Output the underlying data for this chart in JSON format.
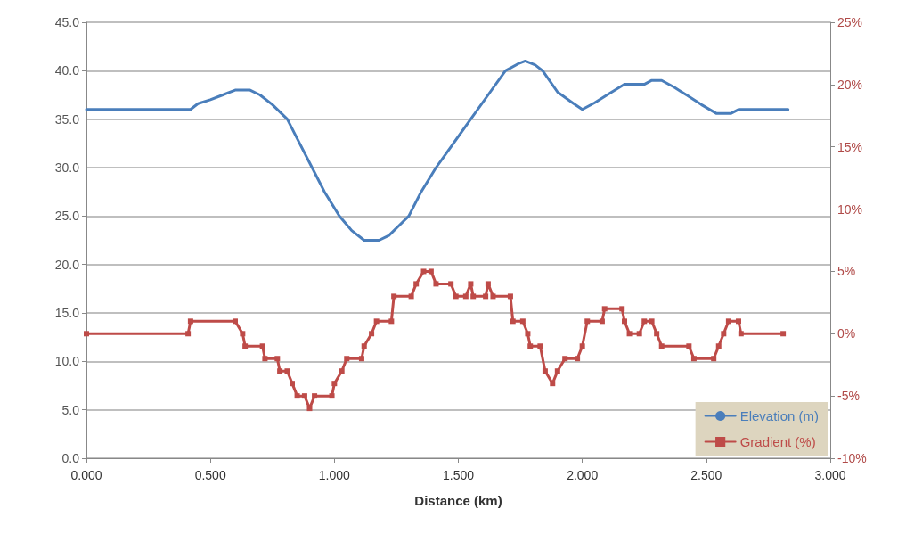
{
  "chart_data": {
    "type": "line",
    "xlabel": "Distance (km)",
    "xlim": [
      0,
      3
    ],
    "xticks": [
      {
        "value": 0,
        "label": "0.000"
      },
      {
        "value": 0.5,
        "label": "0.500"
      },
      {
        "value": 1,
        "label": "1.000"
      },
      {
        "value": 1.5,
        "label": "1.500"
      },
      {
        "value": 2,
        "label": "2.000"
      },
      {
        "value": 2.5,
        "label": "2.500"
      },
      {
        "value": 3,
        "label": "3.000"
      }
    ],
    "ylim": [
      0,
      45
    ],
    "yticks": [
      {
        "value": 0,
        "label": "0.0"
      },
      {
        "value": 5,
        "label": "5.0"
      },
      {
        "value": 10,
        "label": "10.0"
      },
      {
        "value": 15,
        "label": "15.0"
      },
      {
        "value": 20,
        "label": "20.0"
      },
      {
        "value": 25,
        "label": "25.0"
      },
      {
        "value": 30,
        "label": "30.0"
      },
      {
        "value": 35,
        "label": "35.0"
      },
      {
        "value": 40,
        "label": "40.0"
      },
      {
        "value": 45,
        "label": "45.0"
      }
    ],
    "y2lim": [
      -10,
      25
    ],
    "y2ticks": [
      {
        "value": -10,
        "label": "-10%"
      },
      {
        "value": -5,
        "label": "-5%"
      },
      {
        "value": 0,
        "label": "0%"
      },
      {
        "value": 5,
        "label": "5%"
      },
      {
        "value": 10,
        "label": "10%"
      },
      {
        "value": 15,
        "label": "15%"
      },
      {
        "value": 20,
        "label": "20%"
      },
      {
        "value": 25,
        "label": "25%"
      }
    ],
    "grid": "y",
    "legend": "bottom right",
    "line_style": "solid",
    "series": [
      {
        "name": "Elevation (m)",
        "color": "#4a7ebb",
        "marker": "none",
        "x": [
          0,
          0.42,
          0.45,
          0.5,
          0.55,
          0.6,
          0.66,
          0.7,
          0.75,
          0.81,
          0.86,
          0.91,
          0.96,
          1.02,
          1.07,
          1.12,
          1.18,
          1.22,
          1.26,
          1.3,
          1.35,
          1.41,
          1.48,
          1.55,
          1.62,
          1.69,
          1.74,
          1.77,
          1.81,
          1.84,
          1.9,
          1.96,
          2,
          2.05,
          2.1,
          2.17,
          2.25,
          2.28,
          2.32,
          2.37,
          2.42,
          2.48,
          2.54,
          2.6,
          2.63,
          2.83
        ],
        "values": [
          36,
          36,
          36.6,
          37,
          37.5,
          38,
          38,
          37.5,
          36.5,
          35,
          32.5,
          30,
          27.5,
          25,
          23.5,
          22.5,
          22.5,
          23,
          24,
          25,
          27.5,
          30,
          32.5,
          35,
          37.5,
          40,
          40.7,
          41,
          40.6,
          40,
          37.8,
          36.7,
          36,
          36.7,
          37.5,
          38.6,
          38.6,
          39,
          39,
          38.3,
          37.5,
          36.5,
          35.6,
          35.6,
          36,
          36
        ]
      },
      {
        "name": "Gradient (%)",
        "color": "#be4b48",
        "marker": "square",
        "axis": "y2",
        "x": [
          0,
          0.41,
          0.42,
          0.6,
          0.63,
          0.64,
          0.71,
          0.72,
          0.77,
          0.78,
          0.81,
          0.83,
          0.85,
          0.88,
          0.9,
          0.92,
          0.99,
          1,
          1.03,
          1.05,
          1.11,
          1.12,
          1.15,
          1.17,
          1.23,
          1.24,
          1.31,
          1.33,
          1.36,
          1.39,
          1.41,
          1.47,
          1.49,
          1.53,
          1.55,
          1.56,
          1.61,
          1.62,
          1.64,
          1.71,
          1.72,
          1.76,
          1.78,
          1.79,
          1.83,
          1.85,
          1.88,
          1.9,
          1.93,
          1.98,
          2,
          2.02,
          2.08,
          2.09,
          2.16,
          2.17,
          2.19,
          2.23,
          2.25,
          2.28,
          2.3,
          2.32,
          2.43,
          2.45,
          2.53,
          2.55,
          2.57,
          2.59,
          2.63,
          2.64,
          2.81
        ],
        "values": [
          0,
          0,
          1,
          1,
          0,
          -1,
          -1,
          -2,
          -2,
          -3,
          -3,
          -4,
          -5,
          -5,
          -6,
          -5,
          -5,
          -4,
          -3,
          -2,
          -2,
          -1,
          0,
          1,
          1,
          3,
          3,
          4,
          5,
          5,
          4,
          4,
          3,
          3,
          4,
          3,
          3,
          4,
          3,
          3,
          1,
          1,
          0,
          -1,
          -1,
          -3,
          -4,
          -3,
          -2,
          -2,
          -1,
          1,
          1,
          2,
          2,
          1,
          0,
          0,
          1,
          1,
          0,
          -1,
          -1,
          -2,
          -2,
          -1,
          0,
          1,
          1,
          0,
          0
        ]
      }
    ]
  }
}
